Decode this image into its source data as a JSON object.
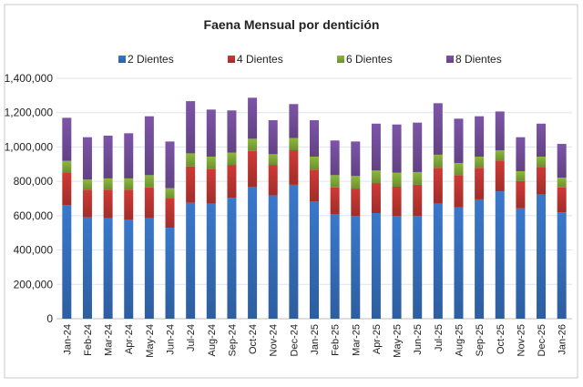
{
  "chart_data": {
    "type": "bar",
    "stacked": true,
    "title": "Faena Mensual por dentición",
    "xlabel": "",
    "ylabel": "",
    "ylim": [
      0,
      1400000
    ],
    "yticks": [
      0,
      200000,
      400000,
      600000,
      800000,
      1000000,
      1200000,
      1400000
    ],
    "ytick_labels": [
      "0",
      "200,000",
      "400,000",
      "600,000",
      "800,000",
      "1,000,000",
      "1,200,000",
      "1,400,000"
    ],
    "grid": true,
    "legend_position": "top",
    "categories": [
      "Jan-24",
      "Feb-24",
      "Mar-24",
      "Apr-24",
      "May-24",
      "Jun-24",
      "Jul-24",
      "Aug-24",
      "Sep-24",
      "Oct-24",
      "Nov-24",
      "Dec-24",
      "Jan-25",
      "Feb-25",
      "Mar-25",
      "Apr-25",
      "May-25",
      "Jun-25",
      "Jul-25",
      "Aug-25",
      "Sep-25",
      "Oct-25",
      "Nov-25",
      "Dec-25",
      "Jan-26"
    ],
    "series": [
      {
        "name": "2 Dientes",
        "color": "#3a78cc",
        "values": [
          661000,
          590000,
          585000,
          576000,
          585000,
          530000,
          675000,
          670000,
          705000,
          769000,
          718000,
          780000,
          684000,
          610000,
          599000,
          615000,
          599000,
          599000,
          670000,
          649000,
          695000,
          742000,
          643000,
          723000,
          619000
        ]
      },
      {
        "name": "4 Dientes",
        "color": "#cf3a36",
        "values": [
          192000,
          161000,
          166000,
          175000,
          180000,
          170000,
          212000,
          200000,
          191000,
          208000,
          178000,
          201000,
          184000,
          155000,
          159000,
          175000,
          170000,
          181000,
          209000,
          187000,
          184000,
          179000,
          159000,
          161000,
          146000
        ]
      },
      {
        "name": "6 Dientes",
        "color": "#8cb83c",
        "values": [
          66000,
          60000,
          66000,
          66000,
          71000,
          60000,
          76000,
          74000,
          71000,
          71000,
          62000,
          71000,
          76000,
          71000,
          73000,
          73000,
          81000,
          74000,
          76000,
          71000,
          65000,
          60000,
          57000,
          60000,
          57000
        ]
      },
      {
        "name": "8 Dientes",
        "color": "#7d55a8",
        "values": [
          251000,
          246000,
          249000,
          263000,
          343000,
          272000,
          304000,
          274000,
          246000,
          239000,
          198000,
          198000,
          212000,
          202000,
          201000,
          273000,
          281000,
          288000,
          300000,
          258000,
          235000,
          226000,
          198000,
          192000,
          196000
        ]
      }
    ]
  }
}
